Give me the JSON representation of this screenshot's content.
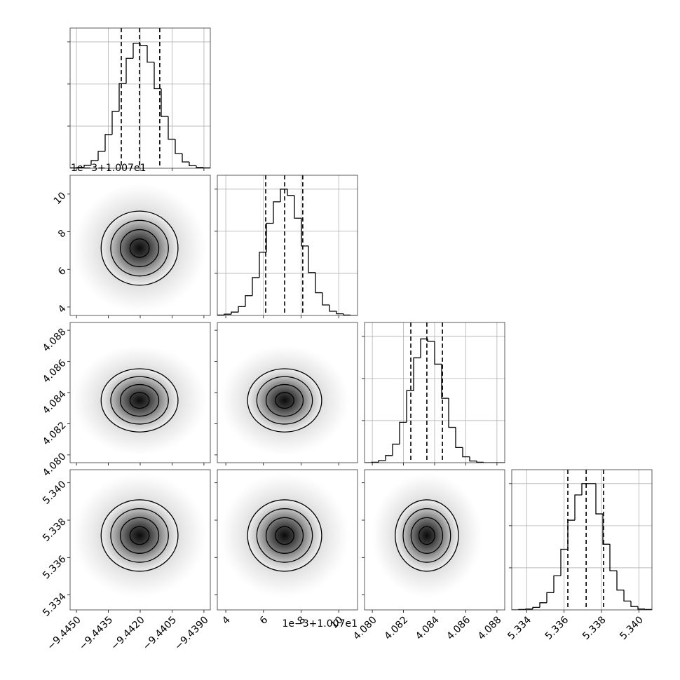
{
  "chart_data": {
    "type": "corner",
    "grid": true,
    "color": "#000000",
    "hist_ylim": [
      0,
      333
    ],
    "hist_yticks": [
      100,
      200,
      300
    ],
    "parameters": [
      {
        "xlim": [
          -9.4453,
          -9.4387
        ],
        "ticks": [
          {
            "value": -9.445,
            "label": "−9.4450"
          },
          {
            "value": -9.4435,
            "label": "−9.4435"
          },
          {
            "value": -9.442,
            "label": "−9.4420"
          },
          {
            "value": -9.4405,
            "label": "−9.4405"
          },
          {
            "value": -9.439,
            "label": "−9.4390"
          }
        ],
        "bins": [
          -9.4453,
          -9.44497,
          -9.44464,
          -9.44431,
          -9.44398,
          -9.44365,
          -9.44332,
          -9.44299,
          -9.44266,
          -9.44233,
          -9.442,
          -9.44167,
          -9.44134,
          -9.44101,
          -9.44068,
          -9.44035,
          -9.44002,
          -9.43969,
          -9.43936,
          -9.43903,
          -9.4387
        ],
        "counts": [
          1,
          2,
          7,
          18,
          40,
          80,
          135,
          201,
          261,
          297,
          292,
          252,
          189,
          123,
          69,
          35,
          15,
          6,
          2,
          1
        ],
        "quantiles": [
          -9.44289,
          -9.44203,
          -9.44108
        ]
      },
      {
        "xlim": [
          3.55,
          11.0
        ],
        "ticks": [
          4,
          6,
          8,
          10
        ],
        "offset_text": "1e−3+1.007e1",
        "bins": [
          3.55,
          3.9225,
          4.295,
          4.6675,
          5.04,
          5.4125,
          5.785,
          6.1575,
          6.53,
          6.9025,
          7.275,
          7.6475,
          8.02,
          8.3925,
          8.765,
          9.1375,
          9.51,
          9.8825,
          10.255,
          10.6275,
          11.0
        ],
        "counts": [
          1,
          3,
          8,
          21,
          47,
          90,
          150,
          219,
          270,
          300,
          285,
          231,
          165,
          102,
          54,
          25,
          10,
          4,
          1,
          0
        ],
        "quantiles": [
          6.12,
          7.126,
          8.09
        ]
      },
      {
        "xlim": [
          4.0795,
          4.0885
        ],
        "ticks": [
          {
            "value": 4.08,
            "label": "4.080"
          },
          4.082,
          4.084,
          4.086,
          4.088
        ],
        "bins": [
          4.0795,
          4.07995,
          4.0804,
          4.08085,
          4.0813,
          4.08175,
          4.0822,
          4.08265,
          4.0831,
          4.08355,
          4.084,
          4.08445,
          4.0849,
          4.08535,
          4.0858,
          4.08625,
          4.0867,
          4.08715,
          4.0876,
          4.08805,
          4.0885
        ],
        "counts": [
          0,
          1,
          5,
          17,
          44,
          96,
          171,
          249,
          294,
          288,
          234,
          153,
          84,
          36,
          14,
          4,
          1,
          0,
          0,
          0
        ],
        "quantiles": [
          4.08247,
          4.0835,
          4.0845
        ]
      },
      {
        "xlim": [
          5.3332,
          5.3407
        ],
        "ticks": [
          5.334,
          5.336,
          5.338,
          {
            "value": 5.34,
            "label": "5.340"
          }
        ],
        "bins": [
          5.3332,
          5.333575,
          5.33395,
          5.334325,
          5.3347,
          5.335075,
          5.33545,
          5.335825,
          5.3362,
          5.336575,
          5.33695,
          5.337325,
          5.3377,
          5.338075,
          5.33845,
          5.338825,
          5.3392,
          5.339575,
          5.33995,
          5.340325,
          5.3407
        ],
        "counts": [
          0,
          1,
          2,
          6,
          17,
          41,
          81,
          144,
          213,
          273,
          300,
          300,
          228,
          156,
          93,
          47,
          21,
          8,
          2,
          1
        ],
        "quantiles": [
          5.3362,
          5.33718,
          5.33811
        ]
      }
    ]
  }
}
